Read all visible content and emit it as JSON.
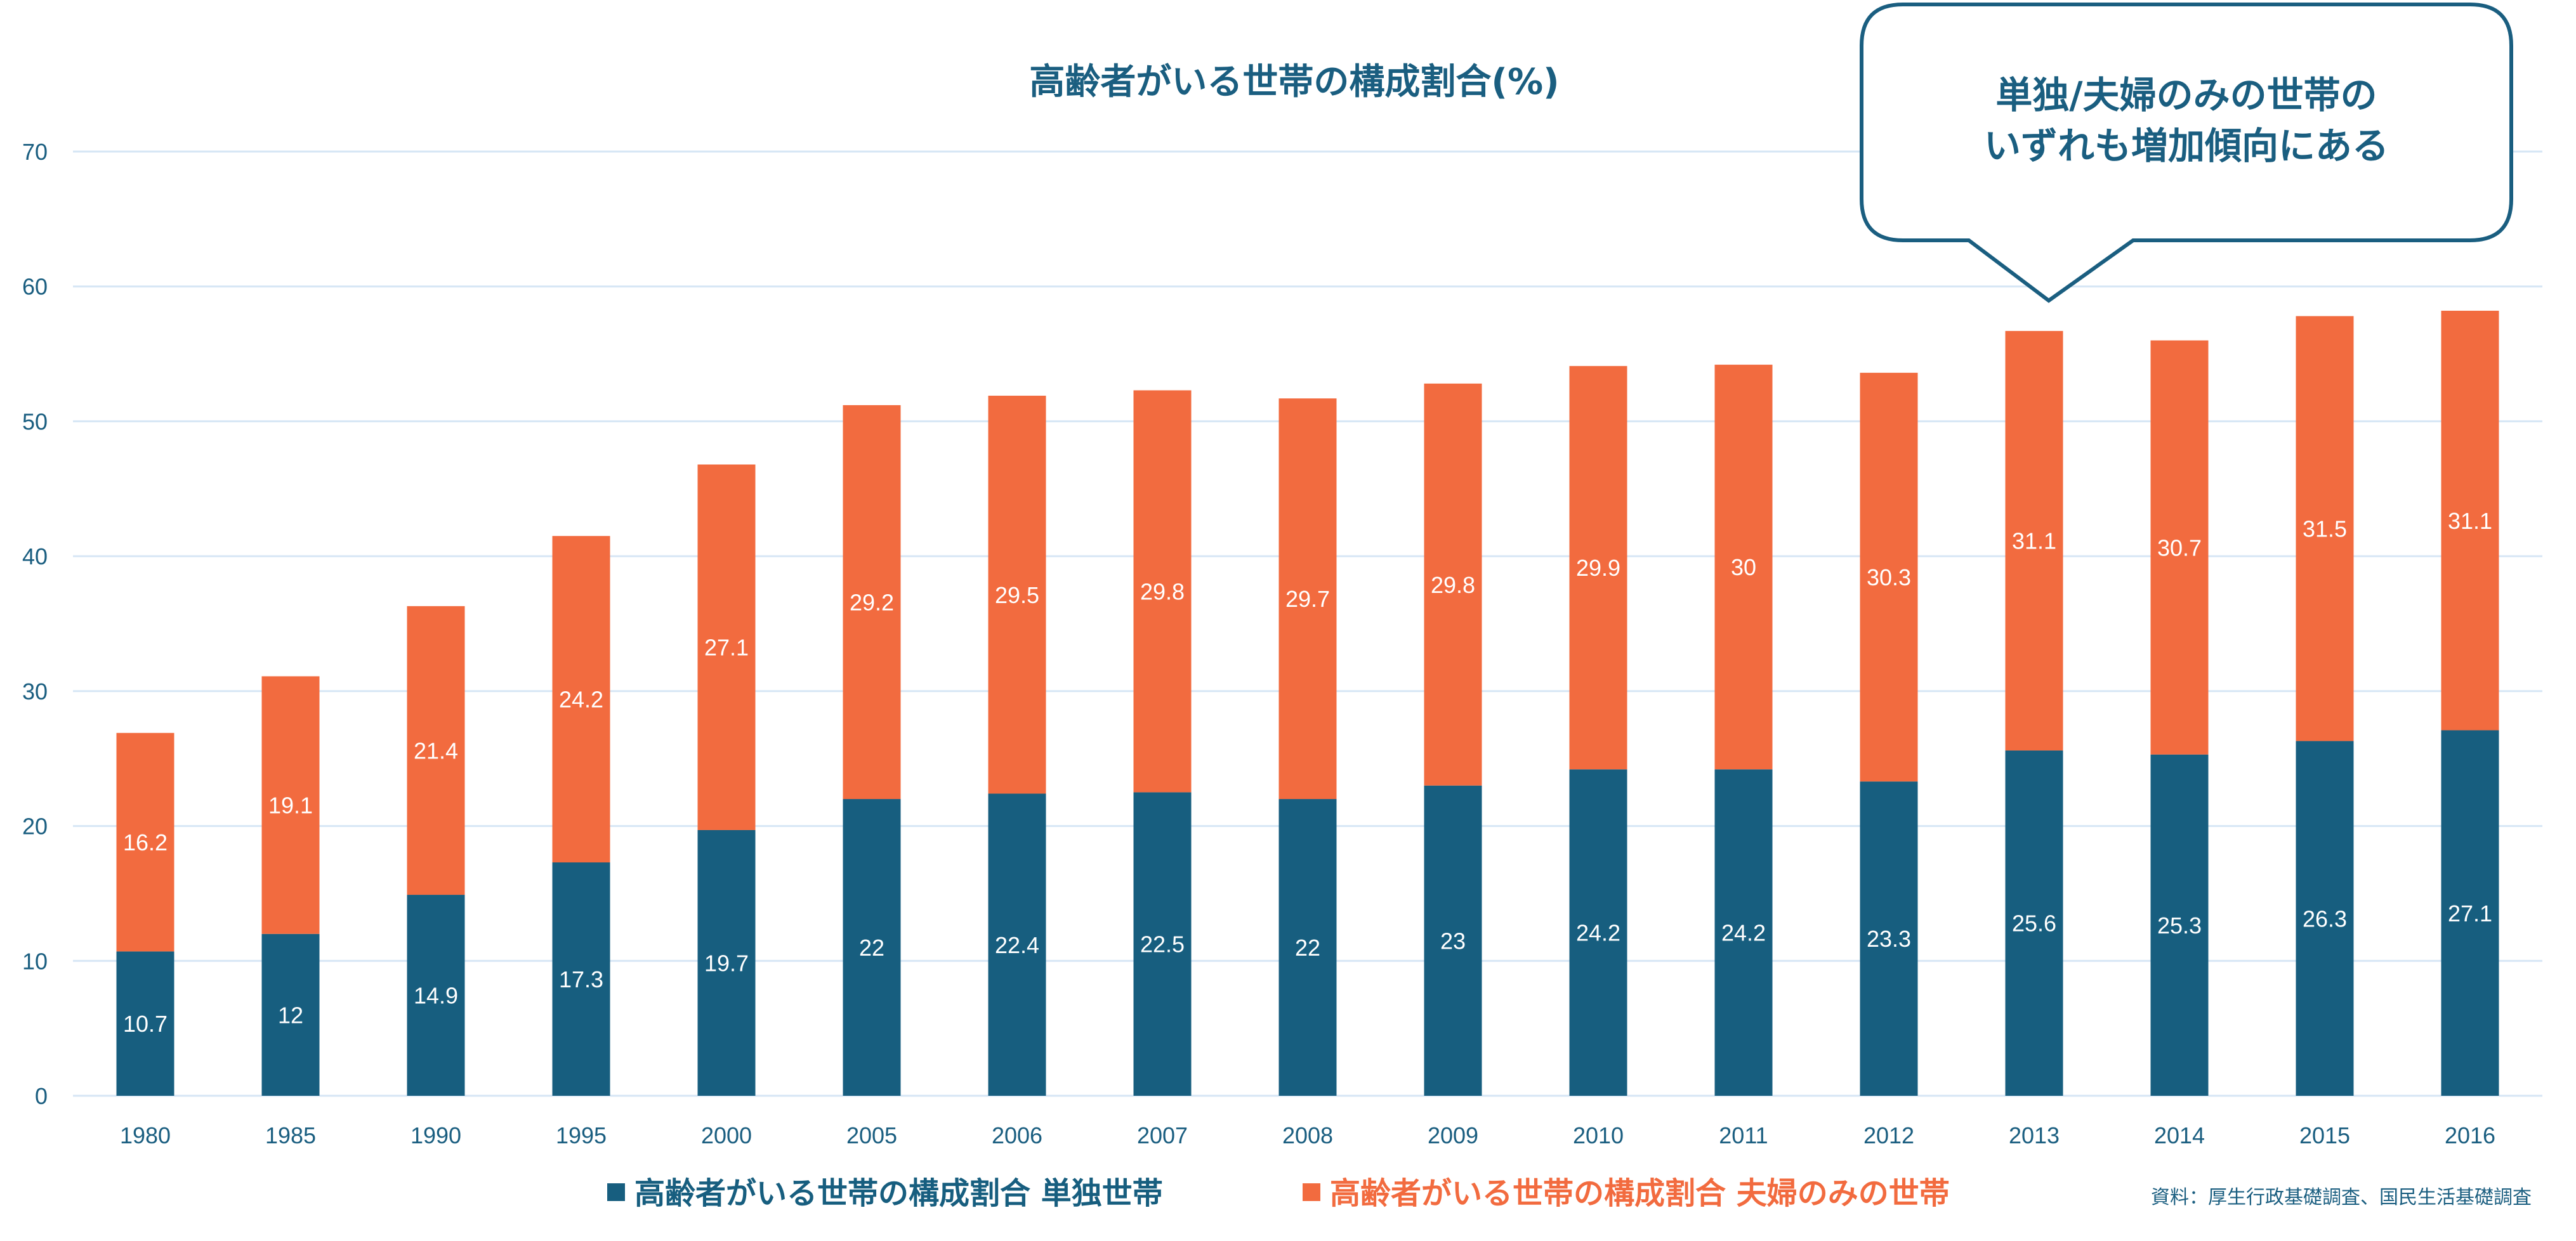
{
  "chart_data": {
    "type": "bar",
    "stacked": true,
    "title": "高齢者がいる世帯の構成割合(%)",
    "xlabel": "",
    "ylabel": "",
    "ylim": [
      0,
      70
    ],
    "yticks": [
      0,
      10,
      20,
      30,
      40,
      50,
      60,
      70
    ],
    "grid": true,
    "legend_position": "bottom",
    "categories": [
      "1980",
      "1985",
      "1990",
      "1995",
      "2000",
      "2005",
      "2006",
      "2007",
      "2008",
      "2009",
      "2010",
      "2011",
      "2012",
      "2013",
      "2014",
      "2015",
      "2016"
    ],
    "series": [
      {
        "name": "高齢者がいる世帯の構成割合 単独世帯",
        "color": "#175E7F",
        "values": [
          10.7,
          12,
          14.9,
          17.3,
          19.7,
          22,
          22.4,
          22.5,
          22,
          23,
          24.2,
          24.2,
          23.3,
          25.6,
          25.3,
          26.3,
          27.1
        ]
      },
      {
        "name": "高齢者がいる世帯の構成割合 夫婦のみの世帯",
        "color": "#F26B3F",
        "values": [
          16.2,
          19.1,
          21.4,
          24.2,
          27.1,
          29.2,
          29.5,
          29.8,
          29.7,
          29.8,
          29.9,
          30,
          30.3,
          31.1,
          30.7,
          31.5,
          31.1
        ]
      }
    ],
    "annotations": [
      {
        "type": "callout",
        "lines": [
          "単独/夫婦のみの世帯の",
          "いずれも増加傾向にある"
        ],
        "points_to_category": "2013"
      }
    ],
    "source": "資料：厚生行政基礎調査、国民生活基礎調査"
  },
  "colors": {
    "text": "#1A5E80",
    "grid": "#D6E6F5",
    "callout_stroke": "#1A5E80"
  }
}
